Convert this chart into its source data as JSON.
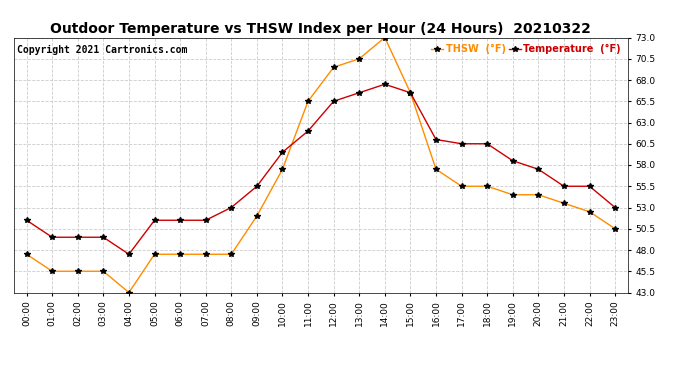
{
  "title": "Outdoor Temperature vs THSW Index per Hour (24 Hours)  20210322",
  "copyright": "Copyright 2021 Cartronics.com",
  "legend_thsw": "THSW  (°F)",
  "legend_temp": "Temperature  (°F)",
  "hours": [
    "00:00",
    "01:00",
    "02:00",
    "03:00",
    "04:00",
    "05:00",
    "06:00",
    "07:00",
    "08:00",
    "09:00",
    "10:00",
    "11:00",
    "12:00",
    "13:00",
    "14:00",
    "15:00",
    "16:00",
    "17:00",
    "18:00",
    "19:00",
    "20:00",
    "21:00",
    "22:00",
    "23:00"
  ],
  "temperature": [
    51.5,
    49.5,
    49.5,
    49.5,
    47.5,
    51.5,
    51.5,
    51.5,
    53.0,
    55.5,
    59.5,
    62.0,
    65.5,
    66.5,
    67.5,
    66.5,
    61.0,
    60.5,
    60.5,
    58.5,
    57.5,
    55.5,
    55.5,
    53.0
  ],
  "thsw": [
    47.5,
    45.5,
    45.5,
    45.5,
    43.0,
    47.5,
    47.5,
    47.5,
    47.5,
    52.0,
    57.5,
    65.5,
    69.5,
    70.5,
    73.0,
    66.5,
    57.5,
    55.5,
    55.5,
    54.5,
    54.5,
    53.5,
    52.5,
    50.5
  ],
  "temp_color": "#cc0000",
  "thsw_color": "#ff8c00",
  "marker": "*",
  "marker_color": "black",
  "marker_size": 4,
  "ylim_min": 43.0,
  "ylim_max": 73.0,
  "yticks": [
    43.0,
    45.5,
    48.0,
    50.5,
    53.0,
    55.5,
    58.0,
    60.5,
    63.0,
    65.5,
    68.0,
    70.5,
    73.0
  ],
  "background_color": "#ffffff",
  "grid_color": "#cccccc",
  "title_fontsize": 10,
  "copyright_fontsize": 7,
  "tick_fontsize": 6.5,
  "legend_fontsize": 7
}
